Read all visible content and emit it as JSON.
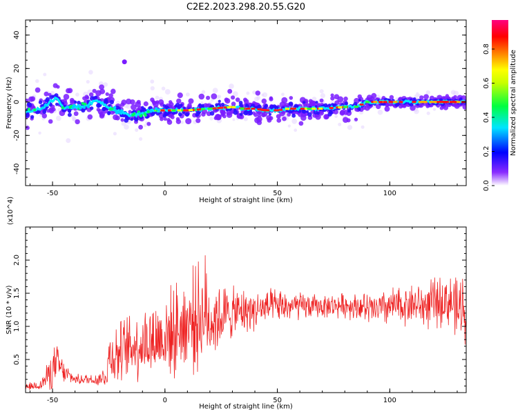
{
  "title": "C2E2.2023.298.20.55.G20",
  "chart_data": [
    {
      "type": "heatmap",
      "xlabel": "Height of straight line (km)",
      "ylabel": "Frequency (Hz)",
      "xlim": [
        -62,
        134
      ],
      "ylim": [
        -50,
        49
      ],
      "xticks": [
        -50,
        0,
        50,
        100
      ],
      "yticks": [
        -40,
        -20,
        0,
        20,
        40
      ],
      "colorbar": {
        "label": "Normalized spectral amplitude",
        "range": [
          0.0,
          0.97
        ],
        "ticks": [
          "0.0",
          "0.2",
          "0.4",
          "0.6",
          "0.8"
        ],
        "colormap": [
          "#ffffff",
          "#6a00ff",
          "#0000ff",
          "#00ffff",
          "#00ff00",
          "#ffff00",
          "#ff8000",
          "#ff0000",
          "#ff0080"
        ]
      },
      "ridge": {
        "x": [
          -62,
          -55,
          -48,
          -45,
          -40,
          -35,
          -30,
          -25,
          -20,
          -15,
          -10,
          -5,
          0,
          10,
          20,
          30,
          35,
          40,
          45,
          50,
          55,
          60,
          70,
          80,
          85,
          90,
          95,
          100,
          110,
          120,
          130,
          134
        ],
        "y": [
          -6,
          -4,
          3,
          -4,
          -3,
          -2,
          1,
          -3,
          -6,
          -8,
          -7,
          -5,
          -5,
          -5,
          -4,
          -3,
          -4,
          -4,
          -5,
          -5,
          -4,
          -4,
          -4,
          -3,
          -3,
          0,
          0,
          0,
          0,
          0,
          0,
          0
        ]
      },
      "outlier": {
        "x": -18,
        "y": 24
      }
    },
    {
      "type": "line",
      "xlabel": "Height of straight line (km)",
      "ylabel": "SNR (10 * v/v)",
      "multiplier": "(x10^4)",
      "xlim": [
        -62,
        134
      ],
      "ylim": [
        0,
        2.5
      ],
      "xticks": [
        -50,
        0,
        50,
        100
      ],
      "yticks": [
        "0.5",
        "1.0",
        "1.5",
        "2.0"
      ],
      "color": "#ee2222",
      "envelope": {
        "x": [
          -62,
          -55,
          -50,
          -48,
          -45,
          -40,
          -30,
          -26,
          -25,
          -20,
          -15,
          -10,
          -5,
          0,
          5,
          10,
          15,
          18,
          20,
          25,
          30,
          40,
          50,
          60,
          70,
          80,
          88,
          90,
          95,
          100,
          105,
          110,
          115,
          120,
          125,
          128,
          130,
          132,
          134
        ],
        "mean": [
          0.08,
          0.12,
          0.35,
          0.45,
          0.3,
          0.2,
          0.2,
          0.25,
          0.55,
          0.6,
          0.7,
          0.75,
          0.8,
          0.85,
          0.95,
          1.05,
          1.15,
          1.2,
          1.1,
          1.15,
          1.2,
          1.25,
          1.3,
          1.3,
          1.3,
          1.32,
          1.3,
          1.25,
          1.25,
          1.3,
          1.3,
          1.35,
          1.3,
          1.35,
          1.4,
          1.35,
          1.2,
          1.3,
          1.3
        ],
        "amp": [
          0.06,
          0.1,
          0.35,
          0.35,
          0.2,
          0.08,
          0.12,
          0.2,
          0.5,
          0.55,
          0.6,
          0.65,
          0.7,
          0.75,
          0.8,
          0.85,
          0.95,
          1.0,
          0.75,
          0.6,
          0.45,
          0.35,
          0.3,
          0.25,
          0.2,
          0.22,
          0.25,
          0.3,
          0.3,
          0.35,
          0.35,
          0.35,
          0.4,
          0.45,
          0.45,
          0.5,
          0.6,
          0.6,
          0.6
        ]
      }
    }
  ]
}
